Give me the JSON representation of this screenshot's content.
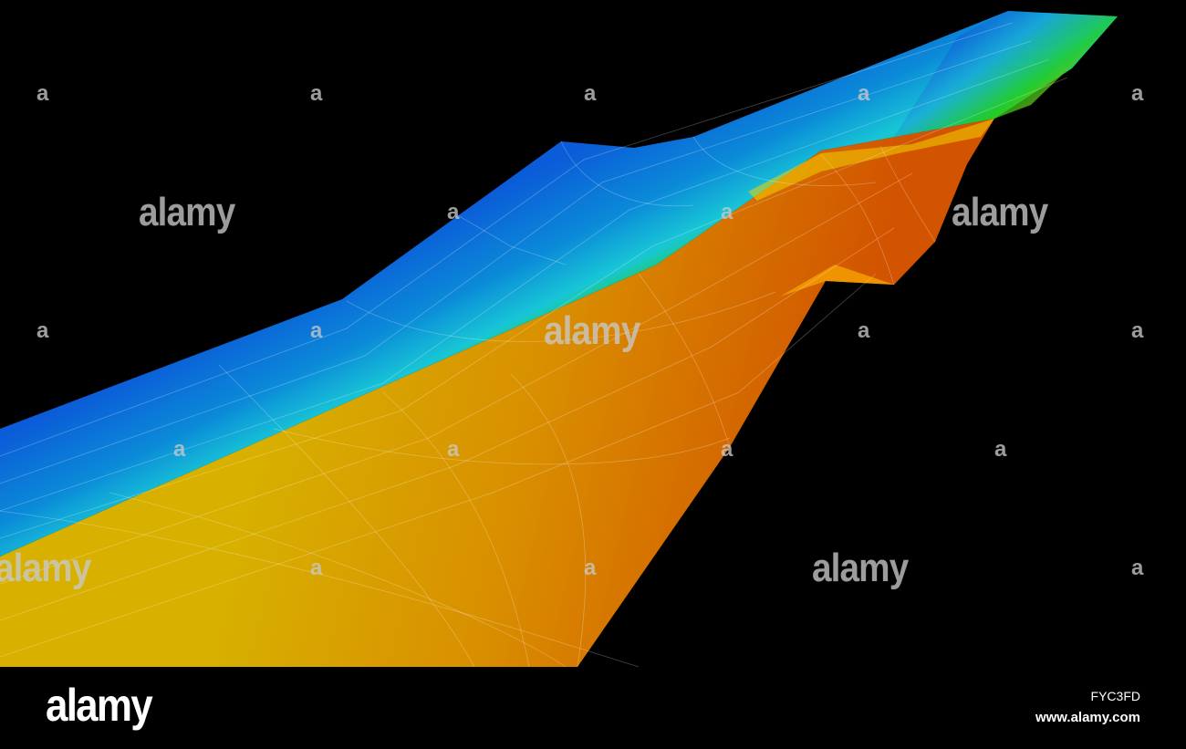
{
  "watermark": {
    "text": "alamy",
    "small_text": "a"
  },
  "footer": {
    "logo": "alamy",
    "image_id": "FYC3FD",
    "url": "www.alamy.com"
  },
  "colors": {
    "background": "#000000",
    "blue": "#0a5ad8",
    "cyan": "#18c8d8",
    "green": "#22cc22",
    "yellow": "#d2d000",
    "orange": "#dc8a00",
    "red_orange": "#d65000"
  }
}
